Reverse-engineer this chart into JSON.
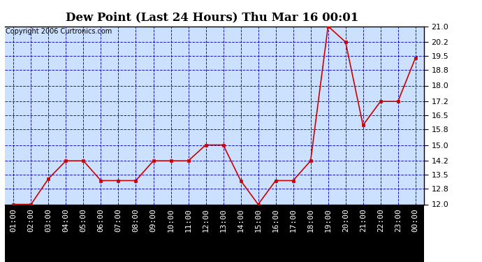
{
  "title": "Dew Point (Last 24 Hours) Thu Mar 16 00:01",
  "copyright": "Copyright 2006 Curtronics.com",
  "x_labels": [
    "01:00",
    "02:00",
    "03:00",
    "04:00",
    "05:00",
    "06:00",
    "07:00",
    "08:00",
    "09:00",
    "10:00",
    "11:00",
    "12:00",
    "13:00",
    "14:00",
    "15:00",
    "16:00",
    "17:00",
    "18:00",
    "19:00",
    "20:00",
    "21:00",
    "22:00",
    "23:00",
    "00:00"
  ],
  "y_values": [
    12.0,
    12.0,
    13.3,
    14.2,
    14.2,
    13.2,
    13.2,
    13.2,
    14.2,
    14.2,
    14.2,
    15.0,
    15.0,
    13.2,
    12.0,
    13.2,
    13.2,
    14.2,
    21.0,
    20.2,
    16.0,
    17.2,
    17.2,
    19.4
  ],
  "ylim_min": 12.0,
  "ylim_max": 21.0,
  "yticks": [
    12.0,
    12.8,
    13.5,
    14.2,
    15.0,
    15.8,
    16.5,
    17.2,
    18.0,
    18.8,
    19.5,
    20.2,
    21.0
  ],
  "line_color": "#cc0000",
  "marker_color": "#cc0000",
  "fig_bg_color": "#ffffff",
  "plot_bg_color": "#cce0ff",
  "grid_color": "#0000bb",
  "title_color": "#000000",
  "title_fontsize": 12,
  "copyright_fontsize": 7,
  "tick_label_fontsize": 8,
  "xaxis_bg_color": "#000000",
  "xaxis_label_color": "#ffffff"
}
